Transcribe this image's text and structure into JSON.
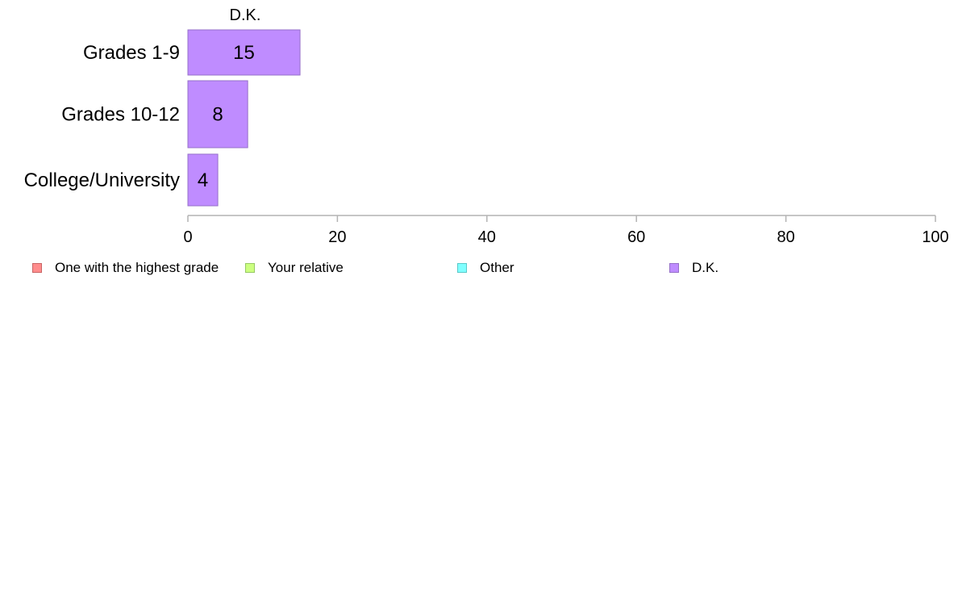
{
  "chart_data": {
    "type": "bar",
    "orientation": "horizontal",
    "series_header": "D.K.",
    "categories": [
      "Grades 1-9",
      "Grades 10-12",
      "College/University"
    ],
    "series": [
      {
        "name": "D.K.",
        "values": [
          15,
          8,
          4
        ],
        "color": "#bf8cff",
        "border": "#9670c8"
      }
    ],
    "value_labels": [
      "15",
      "8",
      "4"
    ],
    "xlim": [
      0,
      100
    ],
    "xticks": [
      "0",
      "20",
      "40",
      "60",
      "80",
      "100"
    ],
    "legend": [
      {
        "label": "One with the highest grade",
        "color": "#ff8c8c",
        "border": "#c86464"
      },
      {
        "label": "Your relative",
        "color": "#ccff80",
        "border": "#96c864"
      },
      {
        "label": "Other",
        "color": "#80ffff",
        "border": "#5ac8c8"
      },
      {
        "label": "D.K.",
        "color": "#bf8cff",
        "border": "#9670c8"
      }
    ],
    "legend_position": "bottom",
    "grid": false
  }
}
